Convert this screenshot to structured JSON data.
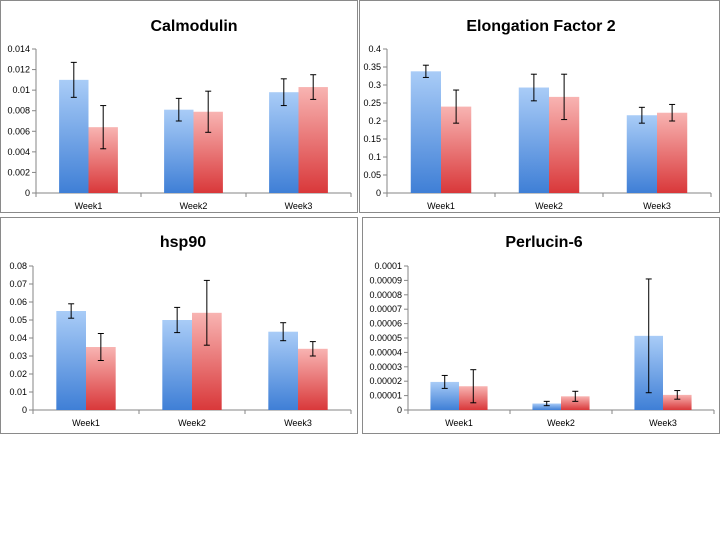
{
  "colors": {
    "series1_top": "#a9ccf7",
    "series1_bottom": "#3f7fd6",
    "series2_top": "#f8b4b2",
    "series2_bottom": "#d9383a",
    "axis": "#868686",
    "error_bar": "#000000"
  },
  "chart_data": [
    {
      "type": "bar",
      "title": "Calmodulin",
      "categories": [
        "Week1",
        "Week2",
        "Week3"
      ],
      "ylim": [
        0,
        0.014
      ],
      "yticks": [
        "0",
        "0.002",
        "0.004",
        "0.006",
        "0.008",
        "0.01",
        "0.012",
        "0.014"
      ],
      "series": [
        {
          "values": [
            0.011,
            0.0081,
            0.0098
          ],
          "errors": [
            0.0017,
            0.0011,
            0.0013
          ]
        },
        {
          "values": [
            0.0064,
            0.0079,
            0.0103
          ],
          "errors": [
            0.0021,
            0.002,
            0.0012
          ]
        }
      ],
      "grid": false,
      "legend": "none"
    },
    {
      "type": "bar",
      "title": "Elongation Factor 2",
      "categories": [
        "Week1",
        "Week2",
        "Week3"
      ],
      "ylim": [
        0,
        0.4
      ],
      "yticks": [
        "0",
        "0.05",
        "0.1",
        "0.15",
        "0.2",
        "0.25",
        "0.3",
        "0.35",
        "0.4"
      ],
      "series": [
        {
          "values": [
            0.338,
            0.293,
            0.216
          ],
          "errors": [
            0.017,
            0.037,
            0.022
          ]
        },
        {
          "values": [
            0.24,
            0.267,
            0.223
          ],
          "errors": [
            0.046,
            0.063,
            0.023
          ]
        }
      ],
      "grid": false,
      "legend": "none"
    },
    {
      "type": "bar",
      "title": "hsp90",
      "categories": [
        "Week1",
        "Week2",
        "Week3"
      ],
      "ylim": [
        0,
        0.08
      ],
      "yticks": [
        "0",
        "0.01",
        "0.02",
        "0.03",
        "0.04",
        "0.05",
        "0.06",
        "0.07",
        "0.08"
      ],
      "series": [
        {
          "values": [
            0.055,
            0.05,
            0.0435
          ],
          "errors": [
            0.004,
            0.007,
            0.005
          ]
        },
        {
          "values": [
            0.035,
            0.054,
            0.034
          ],
          "errors": [
            0.0075,
            0.018,
            0.004
          ]
        }
      ],
      "grid": false,
      "legend": "none"
    },
    {
      "type": "bar",
      "title": "Perlucin-6",
      "categories": [
        "Week1",
        "Week2",
        "Week3"
      ],
      "ylim": [
        0,
        0.0001
      ],
      "yticks": [
        "0",
        "0.00001",
        "0.00002",
        "0.00003",
        "0.00004",
        "0.00005",
        "0.00006",
        "0.00007",
        "0.00008",
        "0.00009",
        "0.0001"
      ],
      "series": [
        {
          "values": [
            1.95e-05,
            4.5e-06,
            5.15e-05
          ],
          "errors": [
            4.5e-06,
            1.5e-06,
            3.95e-05
          ]
        },
        {
          "values": [
            1.65e-05,
            9.5e-06,
            1.05e-05
          ],
          "errors": [
            1.15e-05,
            3.5e-06,
            3e-06
          ]
        }
      ],
      "grid": false,
      "legend": "none"
    }
  ]
}
